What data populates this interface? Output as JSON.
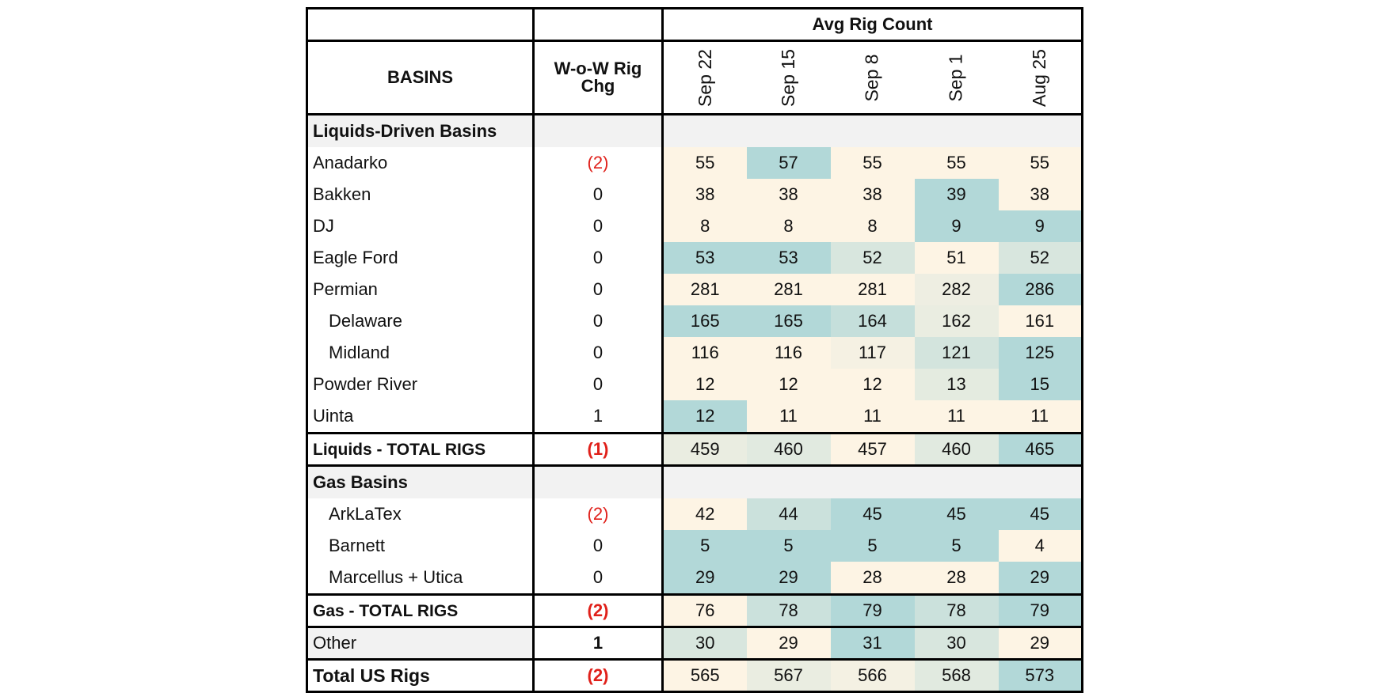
{
  "header": {
    "group_title": "Avg Rig Count",
    "basins_label": "BASINS",
    "wow_label_line1": "W-o-W Rig",
    "wow_label_line2": "Chg",
    "weeks": [
      "Sep 22",
      "Sep 15",
      "Sep 8",
      "Sep 1",
      "Aug 25"
    ]
  },
  "liquids_section": {
    "title": "Liquids-Driven Basins",
    "rows": [
      {
        "name": "Anadarko",
        "wow": "(2)",
        "values": [
          "55",
          "57",
          "55",
          "55",
          "55"
        ]
      },
      {
        "name": "Bakken",
        "wow": "0",
        "values": [
          "38",
          "38",
          "38",
          "39",
          "38"
        ]
      },
      {
        "name": "DJ",
        "wow": "0",
        "values": [
          "8",
          "8",
          "8",
          "9",
          "9"
        ]
      },
      {
        "name": "Eagle Ford",
        "wow": "0",
        "values": [
          "53",
          "53",
          "52",
          "51",
          "52"
        ]
      },
      {
        "name": "Permian",
        "wow": "0",
        "values": [
          "281",
          "281",
          "281",
          "282",
          "286"
        ]
      },
      {
        "name": "Delaware",
        "wow": "0",
        "values": [
          "165",
          "165",
          "164",
          "162",
          "161"
        ]
      },
      {
        "name": "Midland",
        "wow": "0",
        "values": [
          "116",
          "116",
          "117",
          "121",
          "125"
        ]
      },
      {
        "name": "Powder River",
        "wow": "0",
        "values": [
          "12",
          "12",
          "12",
          "13",
          "15"
        ]
      },
      {
        "name": "Uinta",
        "wow": "1",
        "values": [
          "12",
          "11",
          "11",
          "11",
          "11"
        ]
      }
    ],
    "total": {
      "name": "Liquids - TOTAL RIGS",
      "wow": "(1)",
      "values": [
        "459",
        "460",
        "457",
        "460",
        "465"
      ]
    }
  },
  "gas_section": {
    "title": "Gas Basins",
    "rows": [
      {
        "name": "ArkLaTex",
        "wow": "(2)",
        "values": [
          "42",
          "44",
          "45",
          "45",
          "45"
        ]
      },
      {
        "name": "Barnett",
        "wow": "0",
        "values": [
          "5",
          "5",
          "5",
          "5",
          "4"
        ]
      },
      {
        "name": "Marcellus + Utica",
        "wow": "0",
        "values": [
          "29",
          "29",
          "28",
          "28",
          "29"
        ]
      }
    ],
    "total": {
      "name": "Gas - TOTAL RIGS",
      "wow": "(2)",
      "values": [
        "76",
        "78",
        "79",
        "78",
        "79"
      ]
    }
  },
  "other": {
    "name": "Other",
    "wow": "1",
    "values": [
      "30",
      "29",
      "31",
      "30",
      "29"
    ]
  },
  "grand_total": {
    "name": "Total US Rigs",
    "wow": "(2)",
    "values": [
      "565",
      "567",
      "566",
      "568",
      "573"
    ]
  },
  "colors": {
    "heat_low": "#fdf4e4",
    "heat_high": "#b2d8d8",
    "negative": "#e0201a",
    "section_bg": "#f2f2f2"
  }
}
